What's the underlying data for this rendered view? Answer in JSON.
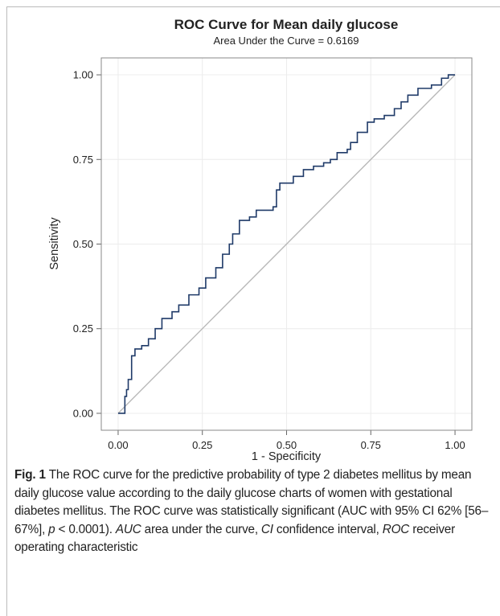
{
  "chart_data": {
    "type": "line",
    "step": true,
    "title": "ROC Curve for Mean daily glucose",
    "subtitle": "Area Under the Curve = 0.6169",
    "xlabel": "1 - Specificity",
    "ylabel": "Sensitivity",
    "xlim": [
      -0.05,
      1.05
    ],
    "ylim": [
      -0.05,
      1.05
    ],
    "xticks": [
      {
        "value": 0,
        "label": "0.00"
      },
      {
        "value": 0.25,
        "label": "0.25"
      },
      {
        "value": 0.5,
        "label": "0.50"
      },
      {
        "value": 0.75,
        "label": "0.75"
      },
      {
        "value": 1,
        "label": "1.00"
      }
    ],
    "yticks": [
      {
        "value": 0,
        "label": "0.00"
      },
      {
        "value": 0.25,
        "label": "0.25"
      },
      {
        "value": 0.5,
        "label": "0.50"
      },
      {
        "value": 0.75,
        "label": "0.75"
      },
      {
        "value": 1,
        "label": "1.00"
      }
    ],
    "grid": true,
    "series": [
      {
        "color": "#1f3a68",
        "x": [
          0,
          0.01,
          0.02,
          0.025,
          0.03,
          0.04,
          0.05,
          0.07,
          0.09,
          0.11,
          0.13,
          0.16,
          0.18,
          0.21,
          0.24,
          0.26,
          0.29,
          0.31,
          0.33,
          0.34,
          0.36,
          0.39,
          0.41,
          0.46,
          0.47,
          0.48,
          0.52,
          0.55,
          0.58,
          0.61,
          0.63,
          0.65,
          0.68,
          0.69,
          0.71,
          0.74,
          0.76,
          0.79,
          0.82,
          0.84,
          0.86,
          0.89,
          0.93,
          0.96,
          0.98,
          1
        ],
        "values": [
          0,
          0,
          0.05,
          0.07,
          0.1,
          0.17,
          0.19,
          0.2,
          0.22,
          0.25,
          0.28,
          0.3,
          0.32,
          0.35,
          0.37,
          0.4,
          0.43,
          0.47,
          0.5,
          0.53,
          0.57,
          0.58,
          0.6,
          0.61,
          0.66,
          0.68,
          0.7,
          0.72,
          0.73,
          0.74,
          0.75,
          0.77,
          0.78,
          0.8,
          0.83,
          0.86,
          0.87,
          0.88,
          0.9,
          0.92,
          0.94,
          0.96,
          0.97,
          0.99,
          1,
          1
        ]
      },
      {
        "color": "#b8b8b8",
        "x": [
          0,
          1
        ],
        "values": [
          0,
          1
        ]
      }
    ]
  },
  "caption": {
    "label": "Fig. 1",
    "parts": [
      "The ROC curve for the predictive probability of type 2 diabetes mellitus by mean daily glucose value according to the daily glucose charts of women with gestational diabetes mellitus. The ROC curve was statistically significant (AUC with 95% CI 62% [56–67%], ",
      "p",
      " < 0.0001). ",
      "AUC",
      " area under the curve, ",
      "CI",
      " confidence interval, ",
      "ROC",
      " receiver operating characteristic"
    ]
  }
}
